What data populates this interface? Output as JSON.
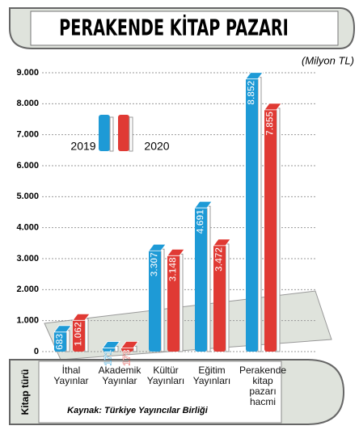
{
  "chart_data": {
    "type": "bar",
    "title": "PERAKENDE KİTAP PAZARI",
    "unit_label": "(Milyon TL)",
    "x_label": "Kitap türü",
    "source": "Kaynak: Türkiye Yayıncılar Birliği",
    "categories": [
      "İthal\nYayınlar",
      "Akademik\nYayınlar",
      "Kültür\nYayınları",
      "Eğitim\nYayınları",
      "Perakende\nkitap\npazarı\nhacmi"
    ],
    "series": [
      {
        "name": "2019",
        "color": "#1e9ad6",
        "values": [
          683,
          171,
          3307,
          4691,
          8852
        ],
        "value_labels": [
          "683",
          "171",
          "3.307",
          "4.691",
          "8.852"
        ]
      },
      {
        "name": "2020",
        "color": "#e03a34",
        "values": [
          1062,
          173,
          3148,
          3472,
          7855
        ],
        "value_labels": [
          "1.062",
          "173",
          "3.148",
          "3.472",
          "7.855"
        ]
      }
    ],
    "ylim": [
      0,
      9000
    ],
    "yticks": [
      {
        "value": 0,
        "label": "0"
      },
      {
        "value": 1000,
        "label": "1.000"
      },
      {
        "value": 2000,
        "label": "2.000"
      },
      {
        "value": 3000,
        "label": "3.000"
      },
      {
        "value": 4000,
        "label": "4.000"
      },
      {
        "value": 5000,
        "label": "5.000"
      },
      {
        "value": 6000,
        "label": "6.000"
      },
      {
        "value": 7000,
        "label": "7.000"
      },
      {
        "value": 8000,
        "label": "8.000"
      },
      {
        "value": 9000,
        "label": "9.000"
      }
    ],
    "grid": true
  }
}
